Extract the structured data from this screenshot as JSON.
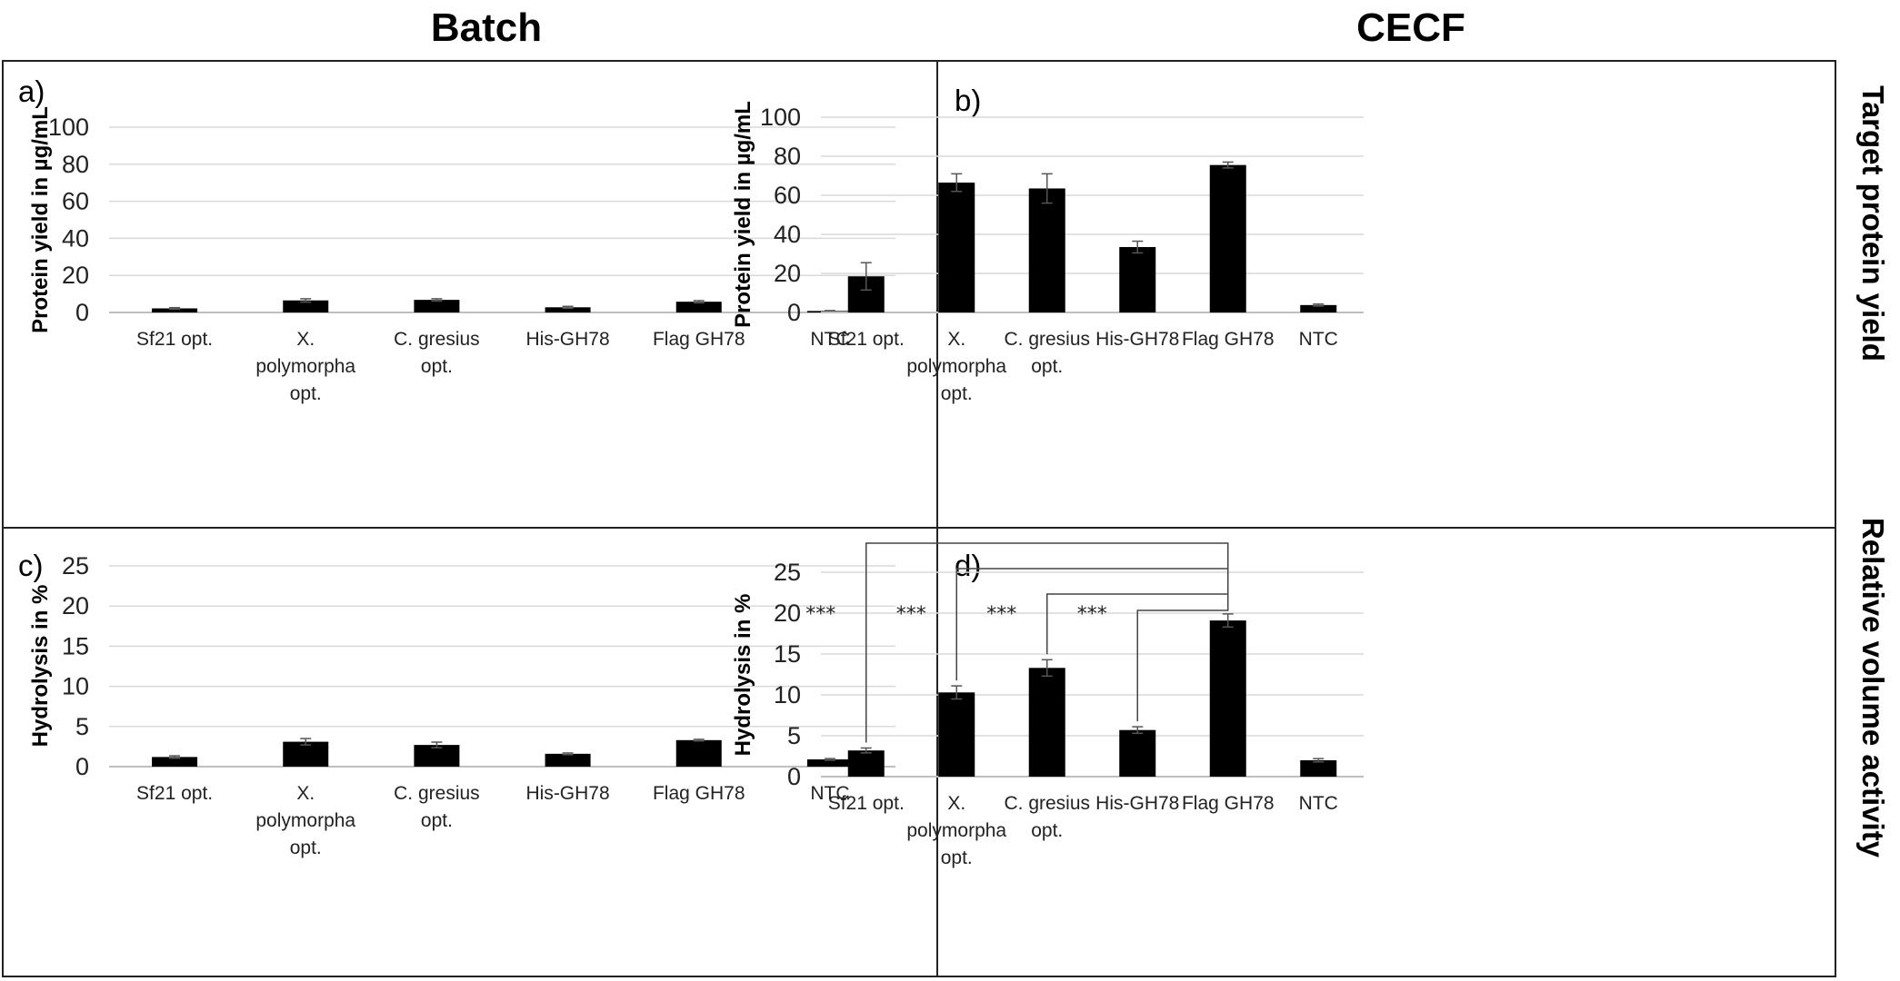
{
  "columns": {
    "left": "Batch",
    "right": "CECF"
  },
  "rows": {
    "top": "Target protein yield",
    "bottom": "Relative volume activity"
  },
  "categories": [
    "Sf21 opt.",
    "X. polymorpha opt.",
    "C. gresius opt.",
    "His-GH78",
    "Flag GH78",
    "NTC"
  ],
  "category_lines": [
    [
      "Sf21 opt."
    ],
    [
      "X.",
      "polymorpha",
      "opt."
    ],
    [
      "C. gresius",
      "opt."
    ],
    [
      "His-GH78"
    ],
    [
      "Flag GH78"
    ],
    [
      "NTC"
    ]
  ],
  "colors": {
    "bar": "#000000",
    "grid": "#d9d9d9",
    "axis": "#bfbfbf",
    "error": "#555555"
  },
  "chart_data": [
    {
      "id": "a",
      "panel_label": "a)",
      "type": "bar",
      "ylabel": "Protein yield in µg/mL",
      "ylim": [
        0,
        100
      ],
      "yticks": [
        0,
        20,
        40,
        60,
        80,
        100
      ],
      "grid": true,
      "values": [
        2.2,
        6.5,
        6.8,
        2.8,
        5.8,
        0.8
      ],
      "errors": [
        0.4,
        0.9,
        0.6,
        0.5,
        0.6,
        0.2
      ]
    },
    {
      "id": "b",
      "panel_label": "b)",
      "type": "bar",
      "ylabel": "Protein yield in µg/mL",
      "ylim": [
        0,
        100
      ],
      "yticks": [
        0,
        20,
        40,
        60,
        80,
        100
      ],
      "grid": true,
      "values": [
        18.5,
        66.5,
        63.5,
        33.5,
        75.5,
        3.8
      ],
      "errors": [
        7.0,
        4.5,
        7.5,
        3.0,
        1.5,
        0.5
      ]
    },
    {
      "id": "c",
      "panel_label": "c)",
      "type": "bar",
      "ylabel": "Hydrolysis in %",
      "ylim": [
        0,
        25
      ],
      "yticks": [
        0,
        5,
        10,
        15,
        20,
        25
      ],
      "grid": true,
      "values": [
        1.2,
        3.1,
        2.7,
        1.6,
        3.3,
        0.9
      ],
      "errors": [
        0.15,
        0.4,
        0.35,
        0.1,
        0.1,
        0.1
      ]
    },
    {
      "id": "d",
      "panel_label": "d)",
      "type": "bar",
      "ylabel": "Hydrolysis in %",
      "ylim": [
        0,
        25
      ],
      "yticks": [
        0,
        5,
        10,
        15,
        20,
        25
      ],
      "grid": true,
      "values": [
        3.2,
        10.3,
        13.3,
        5.7,
        19.1,
        2.0
      ],
      "errors": [
        0.3,
        0.8,
        1.0,
        0.4,
        0.8,
        0.2
      ],
      "significance": [
        {
          "from": "Sf21 opt.",
          "to": "Flag GH78",
          "label": "***"
        },
        {
          "from": "X. polymorpha opt.",
          "to": "Flag GH78",
          "label": "***"
        },
        {
          "from": "C. gresius opt.",
          "to": "Flag GH78",
          "label": "***"
        },
        {
          "from": "His-GH78",
          "to": "Flag GH78",
          "label": "***"
        }
      ]
    }
  ]
}
